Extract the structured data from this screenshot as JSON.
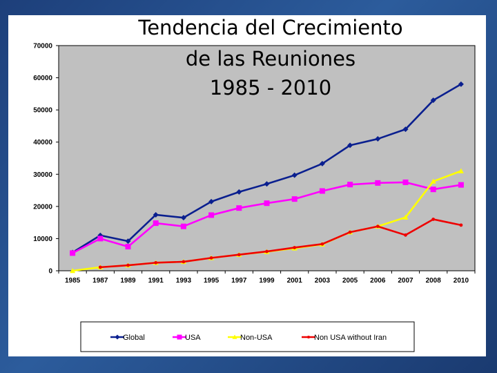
{
  "chart_data": {
    "type": "line",
    "title_lines": [
      "Tendencia del Crecimiento",
      "de las Reuniones",
      "1985 - 2010"
    ],
    "categories": [
      "1985",
      "1987",
      "1989",
      "1991",
      "1993",
      "1995",
      "1997",
      "1999",
      "2001",
      "2003",
      "2005",
      "2006",
      "2007",
      "2008",
      "2010"
    ],
    "ylim": [
      0,
      70000
    ],
    "yticks": [
      "0",
      "10000",
      "20000",
      "30000",
      "40000",
      "50000",
      "60000",
      "70000"
    ],
    "grid": false,
    "legend_position": "bottom",
    "series": [
      {
        "name": "Global",
        "color": "#0a1f8f",
        "marker": "diamond",
        "values": [
          5700,
          11000,
          9200,
          17400,
          16500,
          21500,
          24500,
          27000,
          29700,
          33300,
          39000,
          41000,
          44000,
          53000,
          58000
        ]
      },
      {
        "name": "USA",
        "color": "#ff00ff",
        "marker": "square",
        "values": [
          5500,
          10000,
          7500,
          14800,
          13800,
          17300,
          19500,
          21000,
          22300,
          24800,
          26800,
          27300,
          27500,
          25300,
          26700
        ]
      },
      {
        "name": "Non-USA",
        "color": "#ffff00",
        "marker": "triangle",
        "values": [
          0,
          1100,
          1700,
          2500,
          2800,
          4000,
          5000,
          5900,
          7000,
          8200,
          12000,
          13800,
          16600,
          27800,
          31000
        ]
      },
      {
        "name": "Non USA without Iran",
        "color": "#ee0000",
        "marker": "circle",
        "values": [
          null,
          1100,
          1700,
          2500,
          2800,
          4000,
          5000,
          6000,
          7200,
          8300,
          12000,
          13800,
          11100,
          16000,
          14200
        ]
      }
    ]
  }
}
